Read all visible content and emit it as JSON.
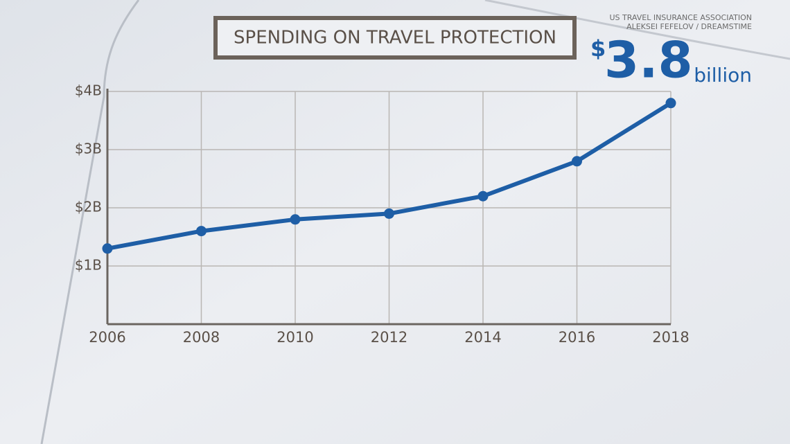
{
  "chart_data": {
    "type": "line",
    "title": "SPENDING ON TRAVEL PROTECTION",
    "sources": [
      "US TRAVEL INSURANCE ASSOCIATION",
      "ALEKSEI FEFELOV / DREAMSTIME"
    ],
    "callout": {
      "currency": "$",
      "amount": "3.8",
      "unit": "billion"
    },
    "x": [
      2006,
      2008,
      2010,
      2012,
      2014,
      2016,
      2018
    ],
    "series": [
      {
        "name": "Spending",
        "color": "#1e5ea6",
        "values": [
          1.3,
          1.6,
          1.8,
          1.9,
          2.2,
          2.8,
          3.8
        ]
      }
    ],
    "xlim": [
      2006,
      2018
    ],
    "xticks": [
      2006,
      2008,
      2010,
      2012,
      2014,
      2016,
      2018
    ],
    "ylim": [
      0,
      4
    ],
    "yticks": [
      {
        "value": 1,
        "label": "$1B"
      },
      {
        "value": 2,
        "label": "$2B"
      },
      {
        "value": 3,
        "label": "$3B"
      },
      {
        "value": 4,
        "label": "$4B"
      }
    ],
    "grid": true
  }
}
